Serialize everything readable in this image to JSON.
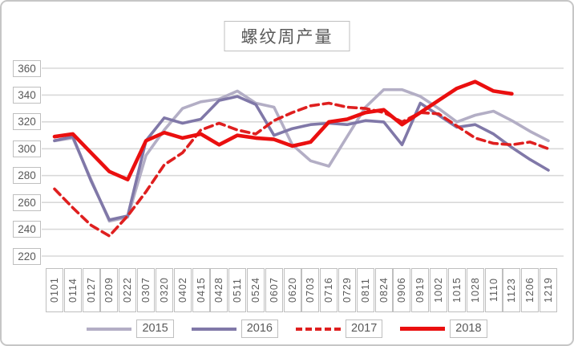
{
  "chart_data": {
    "type": "line",
    "title": "螺纹周产量",
    "categories": [
      "0101",
      "0114",
      "0127",
      "0209",
      "0222",
      "0307",
      "0320",
      "0402",
      "0415",
      "0428",
      "0511",
      "0524",
      "0607",
      "0620",
      "0703",
      "0716",
      "0729",
      "0811",
      "0824",
      "0906",
      "0919",
      "1002",
      "1015",
      "1028",
      "1110",
      "1123",
      "1206",
      "1219"
    ],
    "series": [
      {
        "name": "2015",
        "color": "#b3aec5",
        "style": "solid",
        "values": [
          306,
          308,
          277,
          246,
          249,
          295,
          314,
          330,
          335,
          337,
          343,
          334,
          331,
          303,
          291,
          287,
          309,
          331,
          344,
          344,
          339,
          330,
          320,
          325,
          328,
          321,
          313,
          306
        ]
      },
      {
        "name": "2016",
        "color": "#8078a8",
        "style": "solid",
        "values": [
          306,
          309,
          276,
          247,
          250,
          306,
          323,
          319,
          322,
          336,
          339,
          333,
          310,
          315,
          318,
          319,
          318,
          321,
          320,
          303,
          334,
          325,
          316,
          318,
          311,
          301,
          292,
          284
        ]
      },
      {
        "name": "2017",
        "color": "#df1f1f",
        "style": "dashed",
        "values": [
          270,
          256,
          243,
          235,
          250,
          268,
          288,
          297,
          314,
          319,
          314,
          311,
          321,
          327,
          332,
          334,
          331,
          330,
          327,
          320,
          327,
          326,
          317,
          308,
          304,
          303,
          305,
          300
        ]
      },
      {
        "name": "2018",
        "color": "#ea0f0f",
        "style": "solid",
        "values": [
          309,
          311,
          297,
          283,
          277,
          306,
          312,
          308,
          311,
          303,
          310,
          308,
          307,
          302,
          305,
          320,
          322,
          327,
          329,
          318,
          327,
          336,
          345,
          350,
          343,
          341,
          null,
          null
        ]
      }
    ],
    "y_axis": {
      "min": 220,
      "max": 360,
      "step": 20,
      "ticks": [
        360,
        340,
        320,
        300,
        280,
        260,
        240,
        220
      ]
    },
    "grid": true,
    "legend_position": "bottom",
    "legend": [
      "2015",
      "2016",
      "2017",
      "2018"
    ]
  },
  "style_colors": {
    "gridline": "#d9d9d9",
    "axis_text": "#595959",
    "box_border": "#bfbfbf"
  }
}
